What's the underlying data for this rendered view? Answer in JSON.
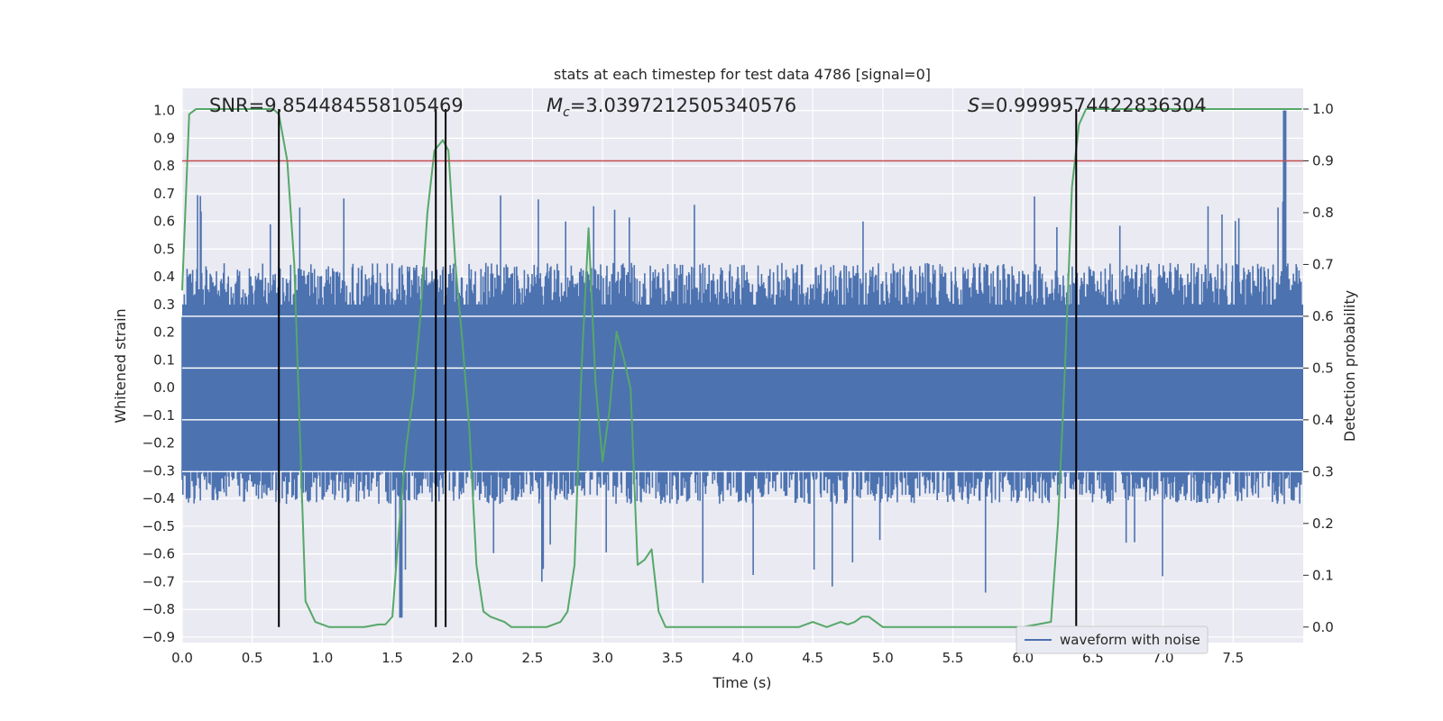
{
  "chart_data": {
    "type": "line",
    "title": "stats at each timestep for test data 4786 [signal=0]",
    "xlabel": "Time (s)",
    "ylabel": "Whitened strain",
    "y2label": "Detection probability",
    "xlim": [
      0.0,
      8.0
    ],
    "ylim": [
      -0.92,
      1.08
    ],
    "y2lim": [
      -0.03,
      1.04
    ],
    "x_ticks": [
      "0.0",
      "0.5",
      "1.0",
      "1.5",
      "2.0",
      "2.5",
      "3.0",
      "3.5",
      "4.0",
      "4.5",
      "5.0",
      "5.5",
      "6.0",
      "6.5",
      "7.0",
      "7.5"
    ],
    "y_ticks": [
      "1.0",
      "0.9",
      "0.8",
      "0.7",
      "0.6",
      "0.5",
      "0.4",
      "0.3",
      "0.2",
      "0.1",
      "0.0",
      "−0.1",
      "−0.2",
      "−0.3",
      "−0.4",
      "−0.5",
      "−0.6",
      "−0.7",
      "−0.8",
      "−0.9"
    ],
    "y2_ticks": [
      "1.0",
      "0.9",
      "0.8",
      "0.7",
      "0.6",
      "0.5",
      "0.4",
      "0.3",
      "0.2",
      "0.1",
      "0.0"
    ],
    "annotations": {
      "snr": "SNR=9.854484558105469",
      "mc_symbol": "M",
      "mc_sub": "c",
      "mc_value": "=3.0397212505340576",
      "s_symbol": "S",
      "s_value": "=0.9999574422836304"
    },
    "threshold": 0.9,
    "threshold_color": "#c44e52",
    "vertical_lines_x": [
      0.69,
      1.81,
      1.88,
      6.38
    ],
    "series": [
      {
        "name": "waveform with noise",
        "color": "#4c72b0",
        "kind": "noise",
        "envelope_points": [
          0.0,
          0.5,
          1.0,
          1.5,
          2.0,
          2.5,
          3.0,
          3.5,
          4.0,
          4.5,
          5.0,
          5.5,
          6.0,
          6.5,
          7.0,
          7.5,
          7.9
        ],
        "typical_max": 0.45,
        "typical_min": -0.42,
        "peak_max": 1.0,
        "peak_min": -0.83
      },
      {
        "name": "detection probability",
        "color": "#55a868",
        "axis": "right",
        "x": [
          0.0,
          0.05,
          0.1,
          0.2,
          0.3,
          0.4,
          0.5,
          0.6,
          0.65,
          0.69,
          0.75,
          0.8,
          0.88,
          0.95,
          1.05,
          1.2,
          1.3,
          1.4,
          1.45,
          1.5,
          1.55,
          1.6,
          1.65,
          1.7,
          1.75,
          1.8,
          1.86,
          1.9,
          1.95,
          2.0,
          2.05,
          2.1,
          2.15,
          2.2,
          2.3,
          2.35,
          2.4,
          2.5,
          2.6,
          2.7,
          2.75,
          2.8,
          2.85,
          2.9,
          2.95,
          3.0,
          3.05,
          3.1,
          3.15,
          3.2,
          3.25,
          3.3,
          3.35,
          3.4,
          3.45,
          3.5,
          3.6,
          3.8,
          4.0,
          4.2,
          4.4,
          4.5,
          4.6,
          4.7,
          4.75,
          4.8,
          4.85,
          4.9,
          4.95,
          5.0,
          5.05,
          5.1,
          5.2,
          5.4,
          5.6,
          5.8,
          6.0,
          6.1,
          6.2,
          6.25,
          6.3,
          6.35,
          6.4,
          6.45,
          6.5,
          6.6,
          6.8,
          7.0,
          7.2,
          7.4,
          7.6,
          7.8,
          7.99
        ],
        "y": [
          0.65,
          0.99,
          1.0,
          1.0,
          1.0,
          1.0,
          1.0,
          1.0,
          1.0,
          0.99,
          0.9,
          0.7,
          0.05,
          0.01,
          0.0,
          0.0,
          0.0,
          0.005,
          0.005,
          0.02,
          0.2,
          0.35,
          0.45,
          0.6,
          0.8,
          0.92,
          0.94,
          0.92,
          0.7,
          0.55,
          0.38,
          0.12,
          0.03,
          0.02,
          0.01,
          0.0,
          0.0,
          0.0,
          0.0,
          0.01,
          0.03,
          0.12,
          0.5,
          0.77,
          0.47,
          0.32,
          0.42,
          0.57,
          0.52,
          0.46,
          0.12,
          0.13,
          0.15,
          0.03,
          0.0,
          0.0,
          0.0,
          0.0,
          0.0,
          0.0,
          0.0,
          0.01,
          0.0,
          0.01,
          0.005,
          0.01,
          0.02,
          0.02,
          0.01,
          0.0,
          0.0,
          0.0,
          0.0,
          0.0,
          0.0,
          0.0,
          0.0,
          0.005,
          0.01,
          0.2,
          0.5,
          0.85,
          0.97,
          1.0,
          1.0,
          1.0,
          1.0,
          1.0,
          1.0,
          1.0,
          1.0,
          1.0,
          1.0
        ]
      }
    ],
    "legend": {
      "label": "waveform with noise",
      "location": "lower-right"
    },
    "grid": true
  }
}
